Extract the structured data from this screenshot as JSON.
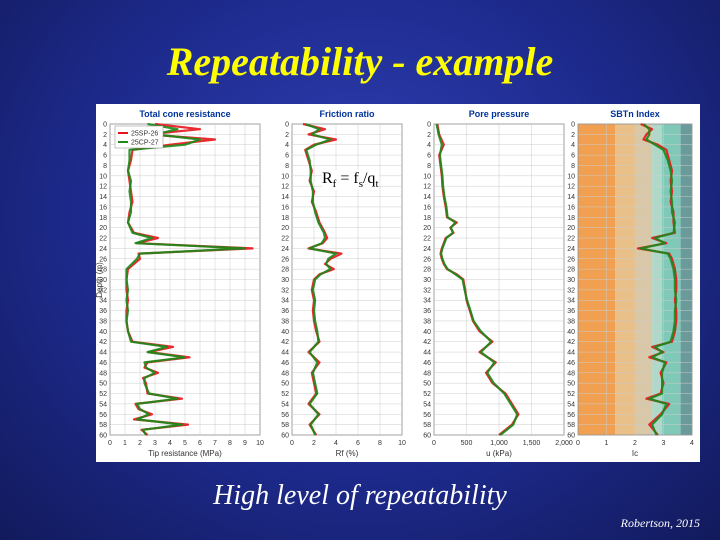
{
  "slide": {
    "title": "Repeatability - example",
    "caption": "High level of repeatability",
    "credit": "Robertson, 2015",
    "formula": {
      "r": "R",
      "f1": "f",
      "eq": " = f",
      "s": "s",
      "slash": "/q",
      "t": "t"
    }
  },
  "colors": {
    "series_a": "#e8141a",
    "series_b": "#1a8a1a",
    "title_color": "#ffff00",
    "zone_colors": [
      "#f0a050",
      "#e8c088",
      "#d8c8a8",
      "#b0d8c8",
      "#80c8b8",
      "#6a9a9a",
      "#5a6a98",
      "#c08050"
    ]
  },
  "legend": [
    "25SP-26",
    "25CP-27"
  ],
  "depth_axis": {
    "label": "Depth (m)",
    "ticks": [
      0,
      2,
      4,
      6,
      8,
      10,
      12,
      14,
      16,
      18,
      20,
      22,
      24,
      26,
      28,
      30,
      32,
      34,
      36,
      38,
      40,
      42,
      44,
      46,
      48,
      50,
      52,
      54,
      56,
      58,
      60
    ]
  },
  "chart_data": [
    {
      "type": "line",
      "title": "Total cone resistance",
      "xlabel": "Tip resistance (MPa)",
      "ylabel": "Depth (m)",
      "xlim": [
        0,
        10
      ],
      "ylim": [
        60,
        0
      ],
      "xticks": [
        "0",
        "1",
        "2",
        "3",
        "4",
        "5",
        "6",
        "7",
        "8",
        "9",
        "10"
      ],
      "grid": true,
      "legend_position": "top-left",
      "series": [
        {
          "name": "25SP-26",
          "depth": [
            0,
            1,
            2,
            3,
            4,
            5,
            7,
            9,
            11,
            13,
            15,
            17,
            19,
            21,
            22,
            23,
            24,
            25,
            26,
            28,
            30,
            32,
            34,
            36,
            38,
            40,
            42,
            43,
            44,
            45,
            46,
            47,
            48,
            49,
            50,
            52,
            53,
            54,
            55,
            56,
            57,
            58,
            59,
            60
          ],
          "values": [
            3,
            6,
            2.5,
            7,
            4,
            1.5,
            1.4,
            1.2,
            1.3,
            1.4,
            1.5,
            1.3,
            1.2,
            1.6,
            3.2,
            1.8,
            9.5,
            1.9,
            2,
            1.2,
            1.1,
            1.1,
            1.2,
            1.1,
            1.1,
            1.2,
            1.5,
            4.2,
            2.6,
            5.3,
            2.5,
            2.3,
            3.2,
            2.2,
            2.4,
            2.5,
            4.8,
            1.7,
            1.9,
            2.8,
            1.6,
            5.2,
            2.1,
            2.5
          ]
        },
        {
          "name": "25CP-27",
          "depth": [
            0,
            1,
            2,
            3,
            4,
            5,
            7,
            9,
            11,
            13,
            15,
            17,
            19,
            21,
            22,
            23,
            24,
            25,
            26,
            28,
            30,
            32,
            34,
            36,
            38,
            40,
            42,
            43,
            44,
            45,
            46,
            47,
            48,
            49,
            50,
            52,
            53,
            54,
            55,
            56,
            57,
            58,
            59,
            60
          ],
          "values": [
            2.5,
            4.5,
            3,
            6,
            5,
            1.3,
            1.3,
            1.2,
            1.4,
            1.3,
            1.4,
            1.4,
            1.2,
            1.5,
            2.8,
            1.7,
            9,
            2,
            1.8,
            1.1,
            1.1,
            1.2,
            1.1,
            1.2,
            1.1,
            1.2,
            1.4,
            3.8,
            2.5,
            5,
            2.3,
            2.4,
            3,
            2.3,
            2.3,
            2.6,
            4.5,
            1.8,
            2,
            2.6,
            1.8,
            4.8,
            2.2,
            2.4
          ]
        }
      ]
    },
    {
      "type": "line",
      "title": "Friction ratio",
      "xlabel": "Rf (%)",
      "ylabel": "Depth (m)",
      "xlim": [
        0,
        10
      ],
      "ylim": [
        60,
        0
      ],
      "xticks": [
        "0",
        "2",
        "4",
        "6",
        "8",
        "10"
      ],
      "grid": true,
      "series": [
        {
          "name": "25SP-26",
          "depth": [
            0,
            1,
            2,
            3,
            4,
            5,
            7,
            9,
            11,
            13,
            15,
            17,
            19,
            21,
            22,
            23,
            24,
            25,
            26,
            27,
            28,
            29,
            30,
            32,
            34,
            36,
            38,
            40,
            42,
            44,
            46,
            48,
            50,
            52,
            54,
            56,
            58,
            60
          ],
          "values": [
            1,
            3,
            1.5,
            4,
            2,
            1.2,
            1.5,
            1.8,
            1.6,
            2,
            1.8,
            2.2,
            2.5,
            3,
            3.2,
            2.8,
            1.5,
            4.5,
            3.5,
            3,
            3.8,
            2.5,
            2,
            1.8,
            2,
            1.9,
            2,
            2.2,
            2.5,
            1.5,
            2.5,
            1.8,
            2,
            2.2,
            1.5,
            2.5,
            1.6,
            2.2
          ]
        },
        {
          "name": "25CP-27",
          "depth": [
            0,
            1,
            2,
            3,
            4,
            5,
            7,
            9,
            11,
            13,
            15,
            17,
            19,
            21,
            22,
            23,
            24,
            25,
            26,
            27,
            28,
            29,
            30,
            32,
            34,
            36,
            38,
            40,
            42,
            44,
            46,
            48,
            50,
            52,
            54,
            56,
            58,
            60
          ],
          "values": [
            1.2,
            2.5,
            1.8,
            3.5,
            2.2,
            1.3,
            1.6,
            1.7,
            1.7,
            1.9,
            1.9,
            2.1,
            2.4,
            2.9,
            3,
            2.7,
            1.6,
            4,
            3.3,
            3.1,
            3.5,
            2.6,
            2.1,
            1.9,
            2.1,
            2,
            2.1,
            2.3,
            2.4,
            1.6,
            2.3,
            1.9,
            2.1,
            2.3,
            1.6,
            2.4,
            1.7,
            2.1
          ]
        }
      ]
    },
    {
      "type": "line",
      "title": "Pore pressure",
      "xlabel": "u (kPa)",
      "ylabel": "Depth (m)",
      "xlim": [
        0,
        2000
      ],
      "ylim": [
        60,
        0
      ],
      "xticks": [
        "0",
        "500",
        "1,000",
        "1,500",
        "2,000"
      ],
      "grid": true,
      "series": [
        {
          "name": "25SP-26",
          "depth": [
            0,
            2,
            4,
            6,
            8,
            10,
            12,
            14,
            16,
            18,
            19,
            20,
            21,
            22,
            23,
            24,
            25,
            26,
            27,
            28,
            29,
            30,
            32,
            34,
            36,
            38,
            40,
            42,
            44,
            46,
            48,
            50,
            52,
            54,
            56,
            58,
            60
          ],
          "values": [
            50,
            80,
            150,
            80,
            100,
            120,
            130,
            150,
            180,
            200,
            350,
            250,
            300,
            180,
            150,
            120,
            100,
            120,
            150,
            200,
            350,
            450,
            480,
            500,
            550,
            600,
            700,
            900,
            700,
            950,
            800,
            900,
            1100,
            1200,
            1300,
            1200,
            1000
          ]
        },
        {
          "name": "25CP-27",
          "depth": [
            0,
            2,
            4,
            6,
            8,
            10,
            12,
            14,
            16,
            18,
            19,
            20,
            21,
            22,
            23,
            24,
            25,
            26,
            27,
            28,
            29,
            30,
            32,
            34,
            36,
            38,
            40,
            42,
            44,
            46,
            48,
            50,
            52,
            54,
            56,
            58,
            60
          ],
          "values": [
            40,
            70,
            120,
            90,
            110,
            130,
            140,
            160,
            190,
            210,
            330,
            260,
            290,
            190,
            160,
            130,
            110,
            130,
            160,
            210,
            330,
            440,
            470,
            510,
            560,
            610,
            720,
            880,
            720,
            930,
            820,
            920,
            1080,
            1180,
            1280,
            1220,
            1020
          ]
        }
      ]
    },
    {
      "type": "line",
      "title": "SBTn Index",
      "xlabel": "Ic",
      "ylabel": "Depth (m)",
      "xlim": [
        0,
        4
      ],
      "ylim": [
        60,
        0
      ],
      "xticks": [
        "0",
        "1",
        "2",
        "3",
        "4"
      ],
      "grid": true,
      "zones": [
        1.31,
        2.05,
        2.6,
        2.95,
        3.6
      ],
      "series": [
        {
          "name": "25SP-26",
          "depth": [
            0,
            1,
            2,
            3,
            4,
            5,
            7,
            9,
            11,
            13,
            15,
            17,
            19,
            21,
            22,
            23,
            24,
            25,
            26,
            28,
            30,
            32,
            34,
            36,
            38,
            40,
            42,
            43,
            44,
            45,
            46,
            48,
            50,
            52,
            53,
            54,
            56,
            58,
            60
          ],
          "values": [
            2.2,
            2.6,
            2.4,
            2.3,
            2.8,
            3.1,
            3.2,
            3.3,
            3.25,
            3.3,
            3.25,
            3.35,
            3.35,
            3.4,
            2.6,
            3.1,
            2.1,
            3.2,
            3.3,
            3.4,
            3.45,
            3.45,
            3.4,
            3.45,
            3.45,
            3.4,
            3.3,
            2.6,
            3,
            2.5,
            3.1,
            2.9,
            3,
            2.9,
            2.4,
            3.2,
            2.9,
            2.5,
            2.8
          ]
        },
        {
          "name": "25CP-27",
          "depth": [
            0,
            1,
            2,
            3,
            4,
            5,
            7,
            9,
            11,
            13,
            15,
            17,
            19,
            21,
            22,
            23,
            24,
            25,
            26,
            28,
            30,
            32,
            34,
            36,
            38,
            40,
            42,
            43,
            44,
            45,
            46,
            48,
            50,
            52,
            53,
            54,
            56,
            58,
            60
          ],
          "values": [
            2.3,
            2.5,
            2.5,
            2.4,
            2.7,
            3,
            3.15,
            3.25,
            3.3,
            3.25,
            3.3,
            3.3,
            3.4,
            3.35,
            2.7,
            3.05,
            2.2,
            3.15,
            3.25,
            3.35,
            3.4,
            3.4,
            3.45,
            3.4,
            3.4,
            3.35,
            3.25,
            2.7,
            2.95,
            2.6,
            3.05,
            2.95,
            2.95,
            2.95,
            2.5,
            3.1,
            2.95,
            2.6,
            2.75
          ]
        }
      ]
    }
  ]
}
